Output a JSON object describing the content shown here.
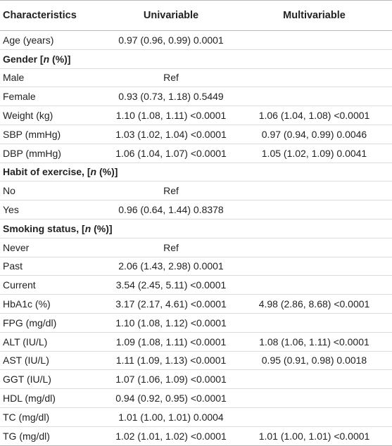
{
  "header": {
    "col1": "Characteristics",
    "col2": "Univariable",
    "col3": "Multivariable"
  },
  "rows": [
    {
      "type": "data",
      "label": "Age (years)",
      "uni": "0.97 (0.96, 0.99) 0.0001",
      "multi": ""
    },
    {
      "type": "section",
      "text": "Gender [",
      "ital": "n",
      "tail": " (%)]"
    },
    {
      "type": "data",
      "label": "Male",
      "uni": "Ref",
      "multi": ""
    },
    {
      "type": "data",
      "label": "Female",
      "uni": "0.93 (0.73, 1.18) 0.5449",
      "multi": ""
    },
    {
      "type": "data",
      "label": "Weight (kg)",
      "uni": "1.10 (1.08, 1.11) <0.0001",
      "multi": "1.06 (1.04, 1.08) <0.0001"
    },
    {
      "type": "data",
      "label": "SBP (mmHg)",
      "uni": "1.03 (1.02, 1.04) <0.0001",
      "multi": "0.97 (0.94, 0.99) 0.0046"
    },
    {
      "type": "data",
      "label": "DBP (mmHg)",
      "uni": "1.06 (1.04, 1.07) <0.0001",
      "multi": "1.05 (1.02, 1.09) 0.0041"
    },
    {
      "type": "section",
      "text": "Habit of exercise, [",
      "ital": "n",
      "tail": " (%)]"
    },
    {
      "type": "data",
      "label": "No",
      "uni": "Ref",
      "multi": ""
    },
    {
      "type": "data",
      "label": "Yes",
      "uni": "0.96 (0.64, 1.44) 0.8378",
      "multi": ""
    },
    {
      "type": "section",
      "text": "Smoking status, [",
      "ital": "n",
      "tail": " (%)]"
    },
    {
      "type": "data",
      "label": "Never",
      "uni": "Ref",
      "multi": ""
    },
    {
      "type": "data",
      "label": "Past",
      "uni": "2.06 (1.43, 2.98) 0.0001",
      "multi": ""
    },
    {
      "type": "data",
      "label": "Current",
      "uni": "3.54 (2.45, 5.11) <0.0001",
      "multi": ""
    },
    {
      "type": "data",
      "label": "HbA1c (%)",
      "uni": "3.17 (2.17, 4.61) <0.0001",
      "multi": "4.98 (2.86, 8.68) <0.0001"
    },
    {
      "type": "data",
      "label": "FPG (mg/dl)",
      "uni": "1.10 (1.08, 1.12) <0.0001",
      "multi": ""
    },
    {
      "type": "data",
      "label": "ALT (IU/L)",
      "uni": "1.09 (1.08, 1.11) <0.0001",
      "multi": "1.08 (1.06, 1.11) <0.0001"
    },
    {
      "type": "data",
      "label": "AST (IU/L)",
      "uni": "1.11 (1.09, 1.13) <0.0001",
      "multi": "0.95 (0.91, 0.98) 0.0018"
    },
    {
      "type": "data",
      "label": "GGT (IU/L)",
      "uni": "1.07 (1.06, 1.09) <0.0001",
      "multi": ""
    },
    {
      "type": "data",
      "label": "HDL (mg/dl)",
      "uni": "0.94 (0.92, 0.95) <0.0001",
      "multi": ""
    },
    {
      "type": "data",
      "label": "TC (mg/dl)",
      "uni": "1.01 (1.00, 1.01) 0.0004",
      "multi": ""
    },
    {
      "type": "data",
      "label": "TG (mg/dl)",
      "uni": "1.02 (1.01, 1.02) <0.0001",
      "multi": "1.01 (1.00, 1.01) <0.0001"
    }
  ]
}
